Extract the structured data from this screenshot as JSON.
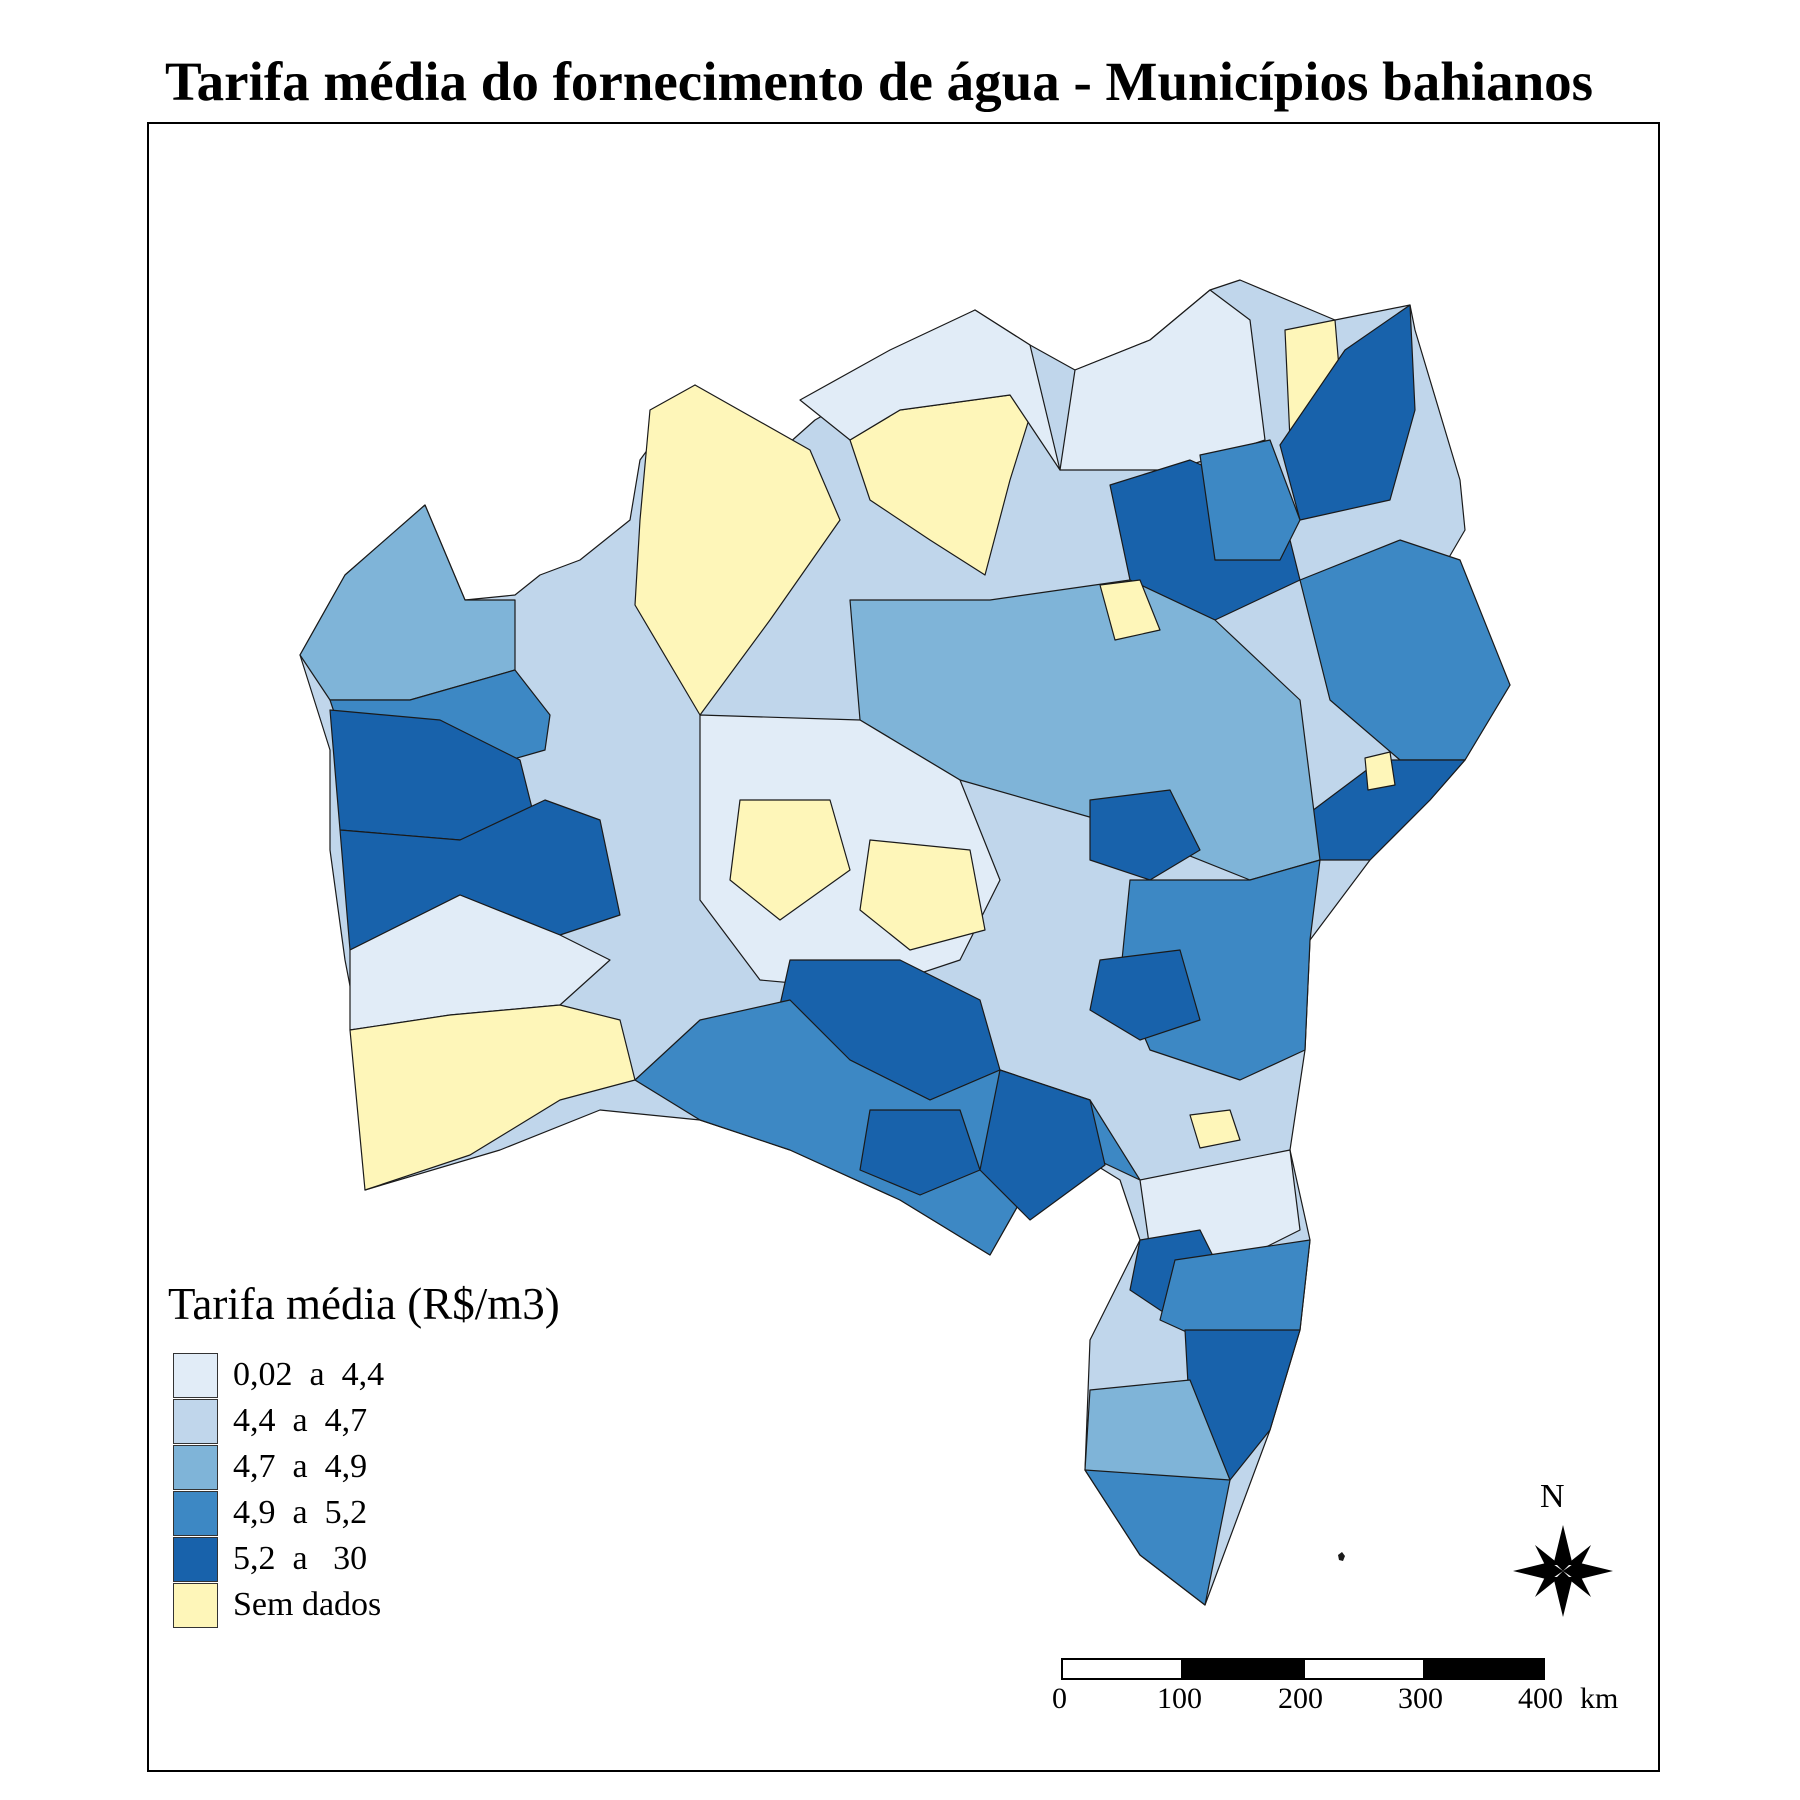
{
  "title": "Tarifa média do fornecimento de água - Municípios bahianos",
  "legend": {
    "title": "Tarifa média (R$/m3)",
    "items": [
      {
        "label": "0,02  a  4,4",
        "color": "#e1ecf7"
      },
      {
        "label": "4,4  a  4,7",
        "color": "#c0d6eb"
      },
      {
        "label": "4,7  a  4,9",
        "color": "#7fb4d8"
      },
      {
        "label": "4,9  a  5,2",
        "color": "#3d88c4"
      },
      {
        "label": "5,2  a   30",
        "color": "#1862ab"
      },
      {
        "label": "Sem dados",
        "color": "#fef6b9"
      }
    ]
  },
  "north_arrow": {
    "label": "N",
    "icon": "compass-star-icon"
  },
  "scale_bar": {
    "ticks": [
      "0",
      "100",
      "200",
      "300",
      "400"
    ],
    "unit": "km"
  }
}
